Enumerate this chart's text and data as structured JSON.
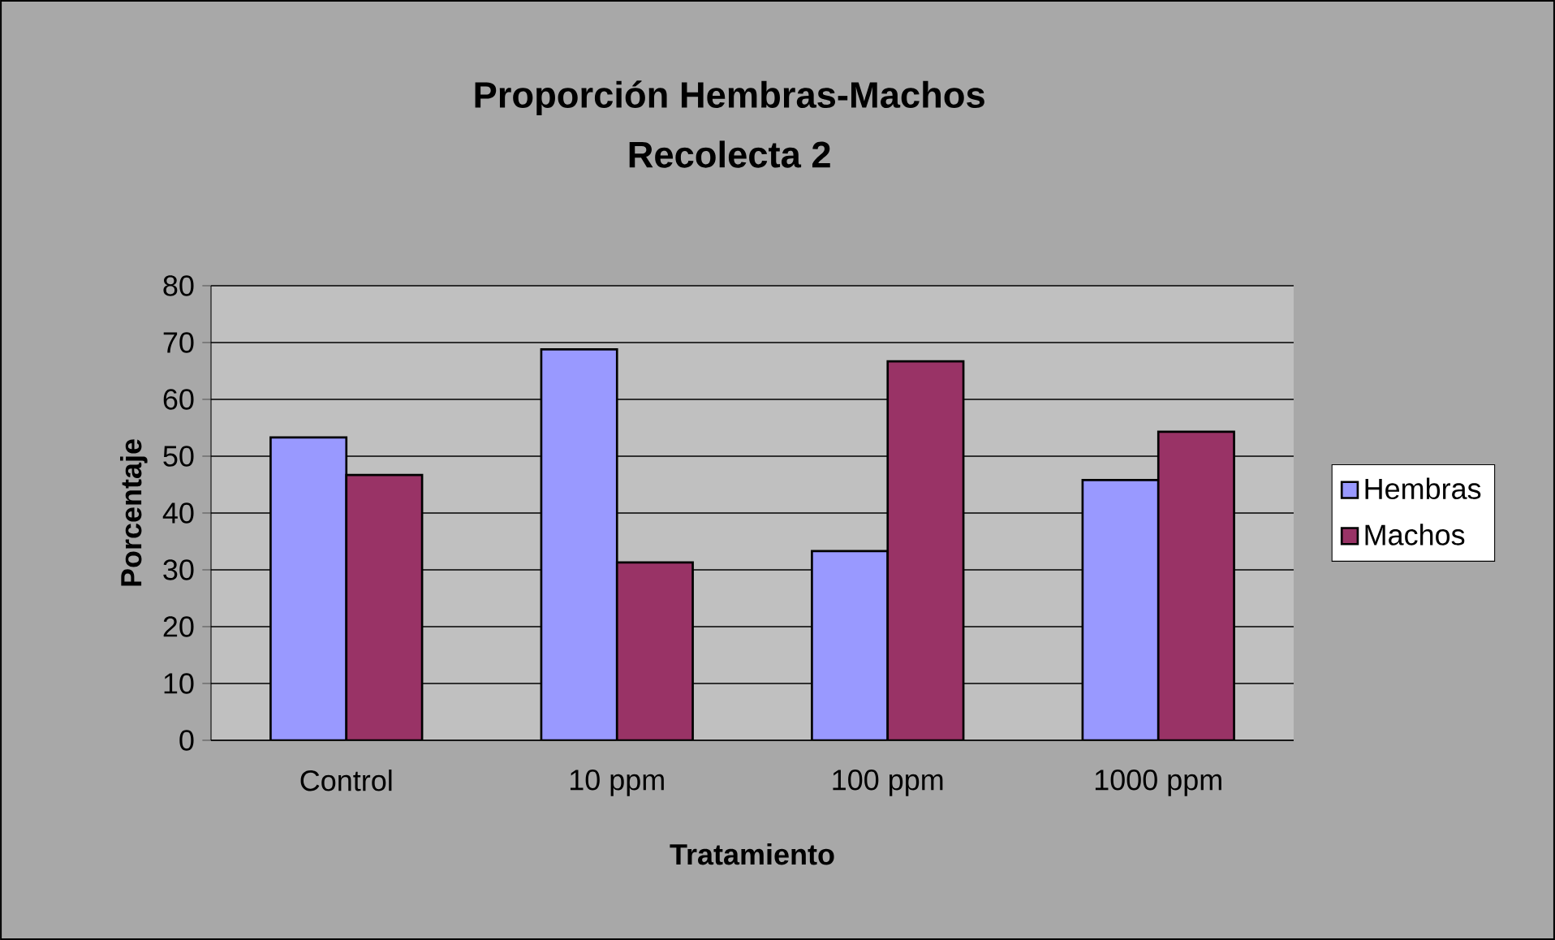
{
  "chart_data": {
    "type": "bar",
    "title": "Proporción Hembras-Machos",
    "subtitle": "Recolecta 2",
    "xlabel": "Tratamiento",
    "ylabel": "Porcentaje",
    "categories": [
      "Control",
      "10 ppm",
      "100 ppm",
      "1000 ppm"
    ],
    "series": [
      {
        "name": "Hembras",
        "color": "#9999ff",
        "values": [
          53.3,
          68.8,
          33.3,
          45.8
        ]
      },
      {
        "name": "Machos",
        "color": "#993366",
        "values": [
          46.7,
          31.3,
          66.7,
          54.3
        ]
      }
    ],
    "ylim": [
      0,
      80
    ],
    "yticks": [
      0,
      10,
      20,
      30,
      40,
      50,
      60,
      70,
      80
    ],
    "grid": "y",
    "legend": "right"
  }
}
